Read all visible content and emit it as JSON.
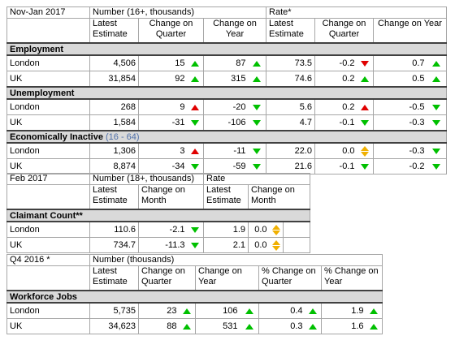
{
  "tables": [
    {
      "period": "Nov-Jan 2017",
      "groups": [
        "Number (16+, thousands)",
        "Rate*"
      ],
      "columns": [
        "Latest Estimate",
        "Change on Quarter",
        "Change on Year",
        "Latest Estimate",
        "Change on Quarter",
        "Change on Year"
      ],
      "sections": [
        {
          "title": "Employment",
          "rows": [
            {
              "label": "London",
              "values": [
                "4,506",
                "15",
                "87",
                "73.5",
                "-0.2",
                "0.7"
              ]
            },
            {
              "label": "UK",
              "values": [
                "31,854",
                "92",
                "315",
                "74.6",
                "0.2",
                "0.5"
              ]
            }
          ]
        },
        {
          "title": "Unemployment",
          "rows": [
            {
              "label": "London",
              "values": [
                "268",
                "9",
                "-20",
                "5.6",
                "0.2",
                "-0.5"
              ]
            },
            {
              "label": "UK",
              "values": [
                "1,584",
                "-31",
                "-106",
                "4.7",
                "-0.1",
                "-0.3"
              ]
            }
          ]
        },
        {
          "title": "Economically Inactive",
          "note": "(16 - 64)",
          "rows": [
            {
              "label": "London",
              "values": [
                "1,306",
                "3",
                "-11",
                "22.0",
                "0.0",
                "-0.3"
              ]
            },
            {
              "label": "UK",
              "values": [
                "8,874",
                "-34",
                "-59",
                "21.6",
                "-0.1",
                "-0.2"
              ]
            }
          ]
        }
      ]
    },
    {
      "period": "Feb 2017",
      "groups": [
        "Number (18+, thousands)",
        "Rate"
      ],
      "columns": [
        "Latest Estimate",
        "Change on Month",
        "Latest Estimate",
        "Change on Month"
      ],
      "sections": [
        {
          "title": "Claimant Count**",
          "rows": [
            {
              "label": "London",
              "values": [
                "110.6",
                "-2.1",
                "1.9",
                "0.0"
              ]
            },
            {
              "label": "UK",
              "values": [
                "734.7",
                "-11.3",
                "2.1",
                "0.0"
              ]
            }
          ]
        }
      ]
    },
    {
      "period": "Q4 2016 *",
      "groups": [
        "Number (thousands)"
      ],
      "columns": [
        "Latest Estimate",
        "Change on Quarter",
        "Change on Year",
        "% Change on Quarter",
        "% Change on Year"
      ],
      "sections": [
        {
          "title": "Workforce Jobs",
          "rows": [
            {
              "label": "London",
              "values": [
                "5,735",
                "23",
                "106",
                "0.4",
                "1.9"
              ]
            },
            {
              "label": "UK",
              "values": [
                "34,623",
                "88",
                "531",
                "0.3",
                "1.6"
              ]
            }
          ]
        }
      ]
    }
  ]
}
